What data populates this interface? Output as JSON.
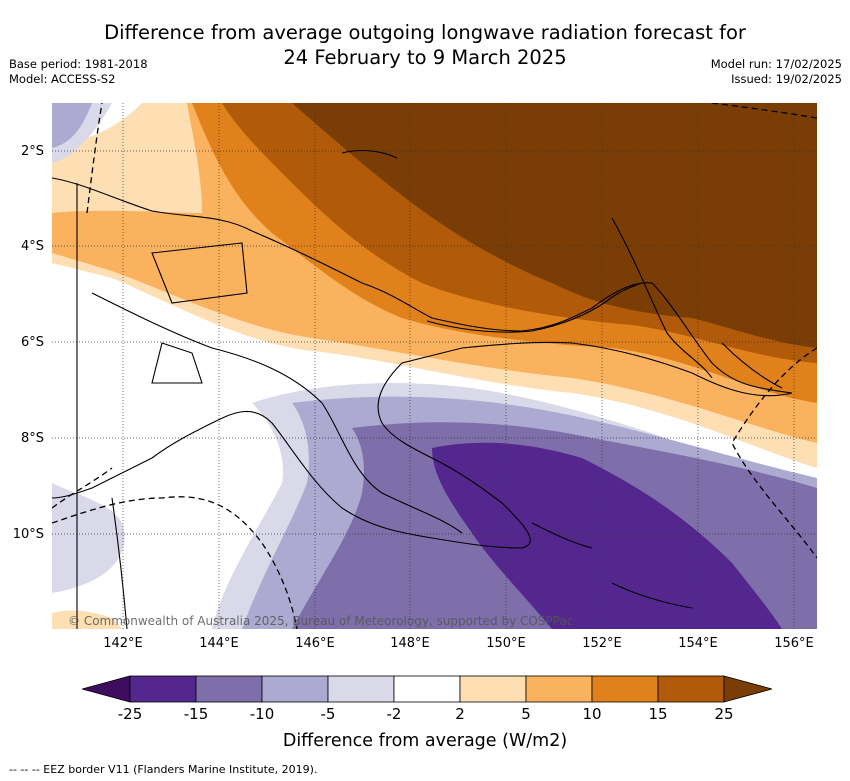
{
  "title_line1": "Difference from average outgoing longwave radiation forecast for",
  "title_line2": "24 February to 9 March 2025",
  "base_period": "Base period: 1981-2018",
  "model": "Model: ACCESS-S2",
  "model_run": "Model run: 17/02/2025",
  "issued": "Issued: 19/02/2025",
  "lat_labels": [
    "2°S",
    "4°S",
    "6°S",
    "8°S",
    "10°S"
  ],
  "lon_labels": [
    "142°E",
    "144°E",
    "146°E",
    "148°E",
    "150°E",
    "152°E",
    "154°E",
    "156°E"
  ],
  "copyright": "© Commonwealth of Australia 2025, Bureau of Meteorology, supported by COSPPac",
  "colorbar": {
    "label": "Difference from average (W/m2)",
    "ticks": [
      "-25",
      "-15",
      "-10",
      "-5",
      "-2",
      "2",
      "5",
      "10",
      "15",
      "25"
    ],
    "colors": [
      "#3f0d5f",
      "#54278f",
      "#7e6fab",
      "#adaad1",
      "#d9d9ea",
      "#ffffff",
      "#fedfb3",
      "#fbb25f",
      "#e0811b",
      "#b05a0a",
      "#7a3d06"
    ]
  },
  "footer": "-- -- -- EEZ border V11 (Flanders Marine Institute, 2019)."
}
